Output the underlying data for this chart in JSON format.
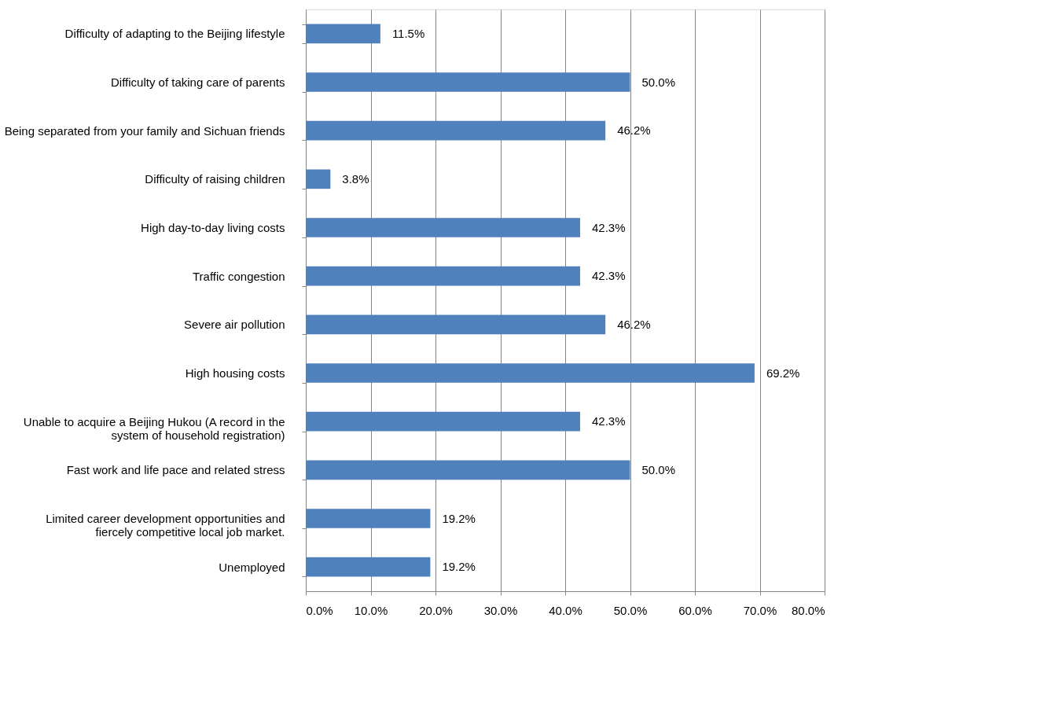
{
  "chart_data": {
    "type": "bar",
    "orientation": "horizontal",
    "categories": [
      "Difficulty of adapting to the Beijing lifestyle",
      "Difficulty of taking care of parents",
      "Being separated from your family and Sichuan friends",
      "Difficulty of raising children",
      "High day-to-day living costs",
      "Traffic congestion",
      "Severe air pollution",
      "High housing costs",
      "Unable to acquire a Beijing Hukou (A record in the system of household registration)",
      "Fast work and life pace and related stress",
      "Limited career development opportunities and fiercely competitive local job market.",
      "Unemployed"
    ],
    "values": [
      11.5,
      50.0,
      46.2,
      3.8,
      42.3,
      42.3,
      46.2,
      69.2,
      42.3,
      50.0,
      19.2,
      19.2
    ],
    "value_labels": [
      "11.5%",
      "50.0%",
      "46.2%",
      "3.8%",
      "42.3%",
      "42.3%",
      "46.2%",
      "69.2%",
      "42.3%",
      "50.0%",
      "19.2%",
      "19.2%"
    ],
    "color": "#4f81bd",
    "xlim": [
      0,
      80
    ],
    "xticks": [
      {
        "value": 0,
        "label": "0.0%"
      },
      {
        "value": 10,
        "label": "10.0%"
      },
      {
        "value": 20,
        "label": "20.0%"
      },
      {
        "value": 30,
        "label": "30.0%"
      },
      {
        "value": 40,
        "label": "40.0%"
      },
      {
        "value": 50,
        "label": "50.0%"
      },
      {
        "value": 60,
        "label": "60.0%"
      },
      {
        "value": 70,
        "label": "70.0%"
      },
      {
        "value": 80,
        "label": "80.0%"
      }
    ],
    "grid": "x"
  }
}
